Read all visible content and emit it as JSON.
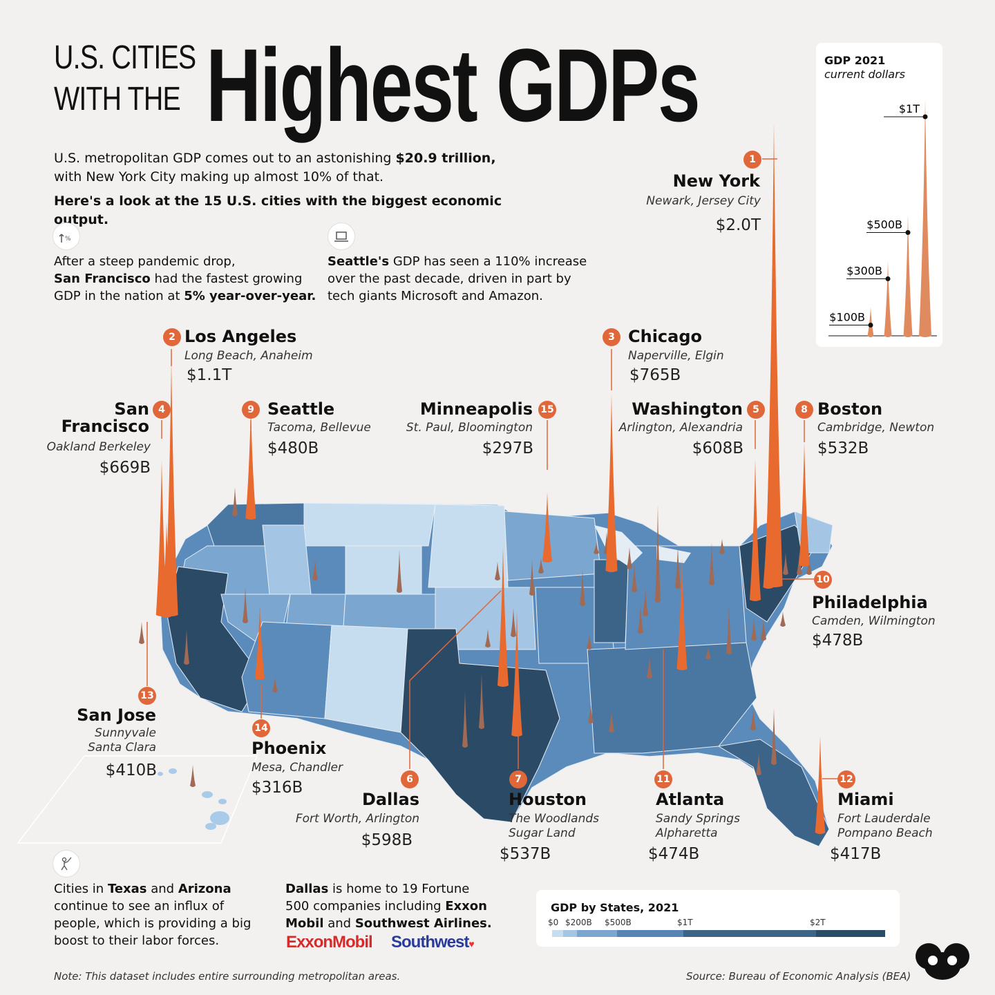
{
  "title": {
    "line1": "U.S. CITIES",
    "line2": "WITH THE",
    "big": "Highest GDPs"
  },
  "intro": {
    "p1a": "U.S. metropolitan GDP comes out to an astonishing ",
    "p1b": "$20.9 trillion,",
    "p1c": "with New York City making up almost 10% of that.",
    "p2": "Here's a look at the 15 U.S. cities with the biggest economic output."
  },
  "facts": {
    "sf": {
      "a": "After a steep pandemic drop,",
      "b": "San Francisco",
      "c": " had the fastest growing",
      "d": "GDP in the nation at ",
      "e": "5% year-over-year."
    },
    "seattle": {
      "a": "Seattle's",
      "b": " GDP has seen a 110% increase",
      "c": "over the past decade, driven in part by",
      "d": "tech giants Microsoft and Amazon."
    },
    "texas": {
      "a": "Cities in ",
      "b": "Texas",
      "c": " and ",
      "d": "Arizona",
      "e": "continue to see an influx of",
      "f": "people, which is providing a big",
      "g": "boost to their labor forces."
    },
    "dallas": {
      "a": "Dallas",
      "b": " is home to 19 Fortune",
      "c": "500 companies including ",
      "d": "Exxon",
      "e": "Mobil",
      "f": " and ",
      "g": "Southwest Airlines."
    }
  },
  "logos": {
    "exxon": "ExxonMobil",
    "southwest": "Southwest"
  },
  "cities": [
    {
      "rank": "1",
      "name": "New York",
      "sub1": "Newark, Jersey City",
      "sub2": "",
      "value": "$2.0T",
      "gdp": 2000
    },
    {
      "rank": "2",
      "name": "Los Angeles",
      "sub1": "Long Beach, Anaheim",
      "sub2": "",
      "value": "$1.1T",
      "gdp": 1100
    },
    {
      "rank": "3",
      "name": "Chicago",
      "sub1": "Naperville, Elgin",
      "sub2": "",
      "value": "$765B",
      "gdp": 765
    },
    {
      "rank": "4",
      "name": "San",
      "name2": "Francisco",
      "sub1": "Oakland Berkeley",
      "sub2": "",
      "value": "$669B",
      "gdp": 669
    },
    {
      "rank": "5",
      "name": "Washington",
      "sub1": "Arlington, Alexandria",
      "sub2": "",
      "value": "$608B",
      "gdp": 608
    },
    {
      "rank": "6",
      "name": "Dallas",
      "sub1": "Fort Worth, Arlington",
      "sub2": "",
      "value": "$598B",
      "gdp": 598
    },
    {
      "rank": "7",
      "name": "Houston",
      "sub1": "The Woodlands",
      "sub2": "Sugar Land",
      "value": "$537B",
      "gdp": 537
    },
    {
      "rank": "8",
      "name": "Boston",
      "sub1": "Cambridge, Newton",
      "sub2": "",
      "value": "$532B",
      "gdp": 532
    },
    {
      "rank": "9",
      "name": "Seattle",
      "sub1": "Tacoma, Bellevue",
      "sub2": "",
      "value": "$480B",
      "gdp": 480
    },
    {
      "rank": "10",
      "name": "Philadelphia",
      "sub1": "Camden, Wilmington",
      "sub2": "",
      "value": "$478B",
      "gdp": 478
    },
    {
      "rank": "11",
      "name": "Atlanta",
      "sub1": "Sandy Springs",
      "sub2": "Alpharetta",
      "value": "$474B",
      "gdp": 474
    },
    {
      "rank": "12",
      "name": "Miami",
      "sub1": "Fort Lauderdale",
      "sub2": "Pompano Beach",
      "value": "$417B",
      "gdp": 417
    },
    {
      "rank": "13",
      "name": "San Jose",
      "sub1": "Sunnyvale",
      "sub2": "Santa Clara",
      "value": "$410B",
      "gdp": 410
    },
    {
      "rank": "14",
      "name": "Phoenix",
      "sub1": "Mesa, Chandler",
      "sub2": "",
      "value": "$316B",
      "gdp": 316
    },
    {
      "rank": "15",
      "name": "Minneapolis",
      "sub1": "St. Paul,  Bloomington",
      "sub2": "",
      "value": "$297B",
      "gdp": 297
    }
  ],
  "gdp_legend": {
    "title": "GDP 2021",
    "subtitle": "current dollars",
    "marks": [
      {
        "label": "$100B",
        "value": 100
      },
      {
        "label": "$300B",
        "value": 300
      },
      {
        "label": "$500B",
        "value": 500
      },
      {
        "label": "$1T",
        "value": 1000
      }
    ]
  },
  "state_legend": {
    "title": "GDP by States, 2021",
    "ticks": [
      "$0",
      "$200B",
      "$500B",
      "$1T",
      "$2T"
    ],
    "colors": [
      "#c6dcef",
      "#a4c5e3",
      "#7aa6cf",
      "#5784b2",
      "#3c6488",
      "#2b4a66"
    ]
  },
  "note": "Note: This dataset includes entire surrounding metropolitan areas.",
  "source": "Source: Bureau of Economic Analysis (BEA)",
  "colors": {
    "spike": "#e86a2f",
    "badge": "#e0673a",
    "minor_spike": "#a06a55",
    "map_dark": "#2f506d"
  }
}
